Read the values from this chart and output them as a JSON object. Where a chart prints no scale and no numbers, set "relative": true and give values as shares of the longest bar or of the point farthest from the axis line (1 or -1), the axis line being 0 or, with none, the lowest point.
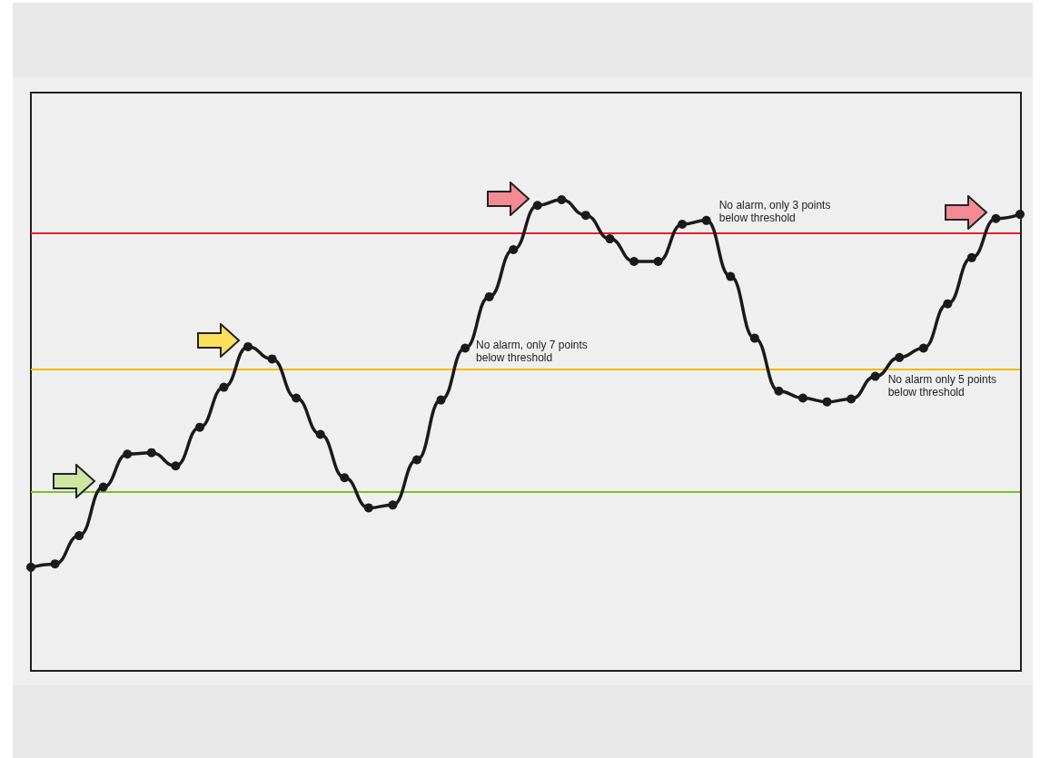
{
  "chart_data": {
    "type": "line",
    "relative": true,
    "marker": "circle",
    "line_style": "solid",
    "grid": false,
    "categories": [
      null,
      null,
      null,
      null,
      null,
      null,
      null,
      null,
      null,
      null,
      null,
      null,
      null,
      null,
      null,
      null,
      null,
      null,
      null,
      null,
      null,
      null,
      null,
      null,
      null,
      null,
      null,
      null,
      null,
      null,
      null,
      null,
      null,
      null,
      null,
      null,
      null,
      null,
      null,
      null,
      null,
      null
    ],
    "series": [
      {
        "color": "#1a1a1a",
        "values": [
          0.22,
          0.227,
          0.287,
          0.39,
          0.46,
          0.463,
          0.435,
          0.517,
          0.602,
          0.688,
          0.662,
          0.579,
          0.502,
          0.41,
          0.346,
          0.352,
          0.448,
          0.575,
          0.685,
          0.794,
          0.894,
          0.988,
          1,
          0.967,
          0.917,
          0.869,
          0.869,
          0.948,
          0.956,
          0.837,
          0.706,
          0.594,
          0.579,
          0.571,
          0.577,
          0.625,
          0.665,
          0.685,
          0.779,
          0.877,
          0.96,
          0.969
        ]
      }
    ],
    "ref_lines": [
      {
        "axis": "y",
        "value": 0.931,
        "color": "#e8202a"
      },
      {
        "axis": "y",
        "value": 0.638,
        "color": "#f5b800"
      },
      {
        "axis": "y",
        "value": 0.379,
        "color": "#7ac21e"
      }
    ],
    "annotations": [
      "No alarm, only 7 points below threshold",
      "No alarm, only 3 points below threshold",
      "No alarm only 5 points below threshold"
    ]
  }
}
